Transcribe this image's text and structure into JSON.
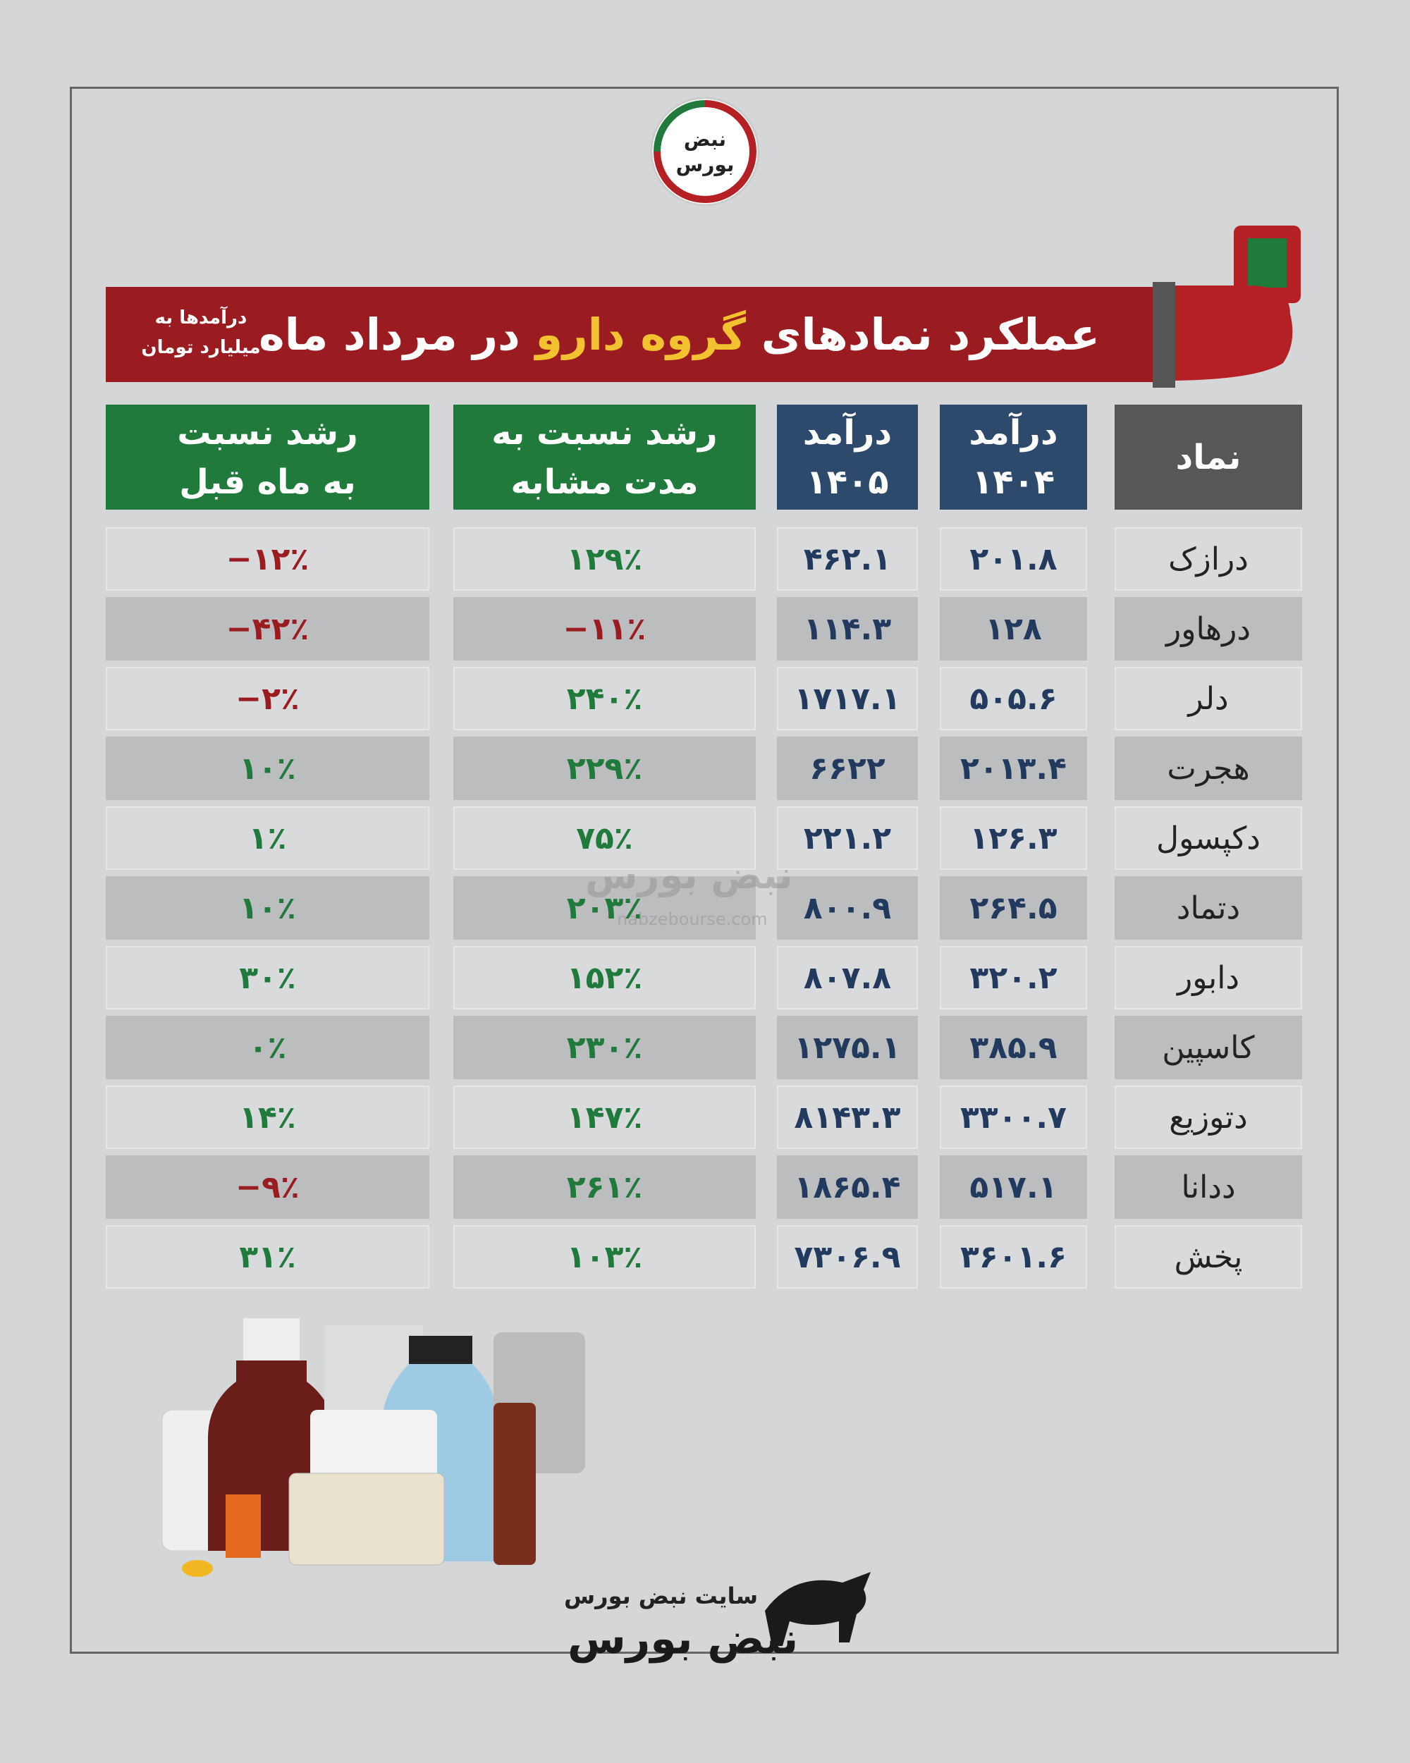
{
  "header": {
    "title_start": "عملکرد نمادهای",
    "title_highlight": "گروه دارو",
    "title_end": "در مرداد ماه",
    "note": [
      "درآمدها به",
      "میلیارد تومان"
    ],
    "logo": [
      "نبض",
      "بورس"
    ]
  },
  "table": {
    "columns": [
      [
        "نماد"
      ],
      [
        "درآمد",
        "۱۴۰۴"
      ],
      [
        "درآمد",
        "۱۴۰۵"
      ],
      [
        "رشد نسبت به",
        "مدت مشابه"
      ],
      [
        "رشد نسبت",
        "به ماه قبل"
      ]
    ],
    "rows": [
      [
        "درازک",
        "۲۰۱.۸",
        "۴۶۲.۱",
        "۱۲۹٪",
        "−۱۲٪"
      ],
      [
        "درهاور",
        "۱۲۸",
        "۱۱۴.۳",
        "−۱۱٪",
        "−۴۲٪"
      ],
      [
        "دلر",
        "۵۰۵.۶",
        "۱۷۱۷.۱",
        "۲۴۰٪",
        "−۲٪"
      ],
      [
        "هجرت",
        "۲۰۱۳.۴",
        "۶۶۲۲",
        "۲۲۹٪",
        "۱۰٪"
      ],
      [
        "دکپسول",
        "۱۲۶.۳",
        "۲۲۱.۲",
        "۷۵٪",
        "۱٪"
      ],
      [
        "دتماد",
        "۲۶۴.۵",
        "۸۰۰.۹",
        "۲۰۳٪",
        "۱۰٪"
      ],
      [
        "دابور",
        "۳۲۰.۲",
        "۸۰۷.۸",
        "۱۵۲٪",
        "۳۰٪"
      ],
      [
        "کاسپین",
        "۳۸۵.۹",
        "۱۲۷۵.۱",
        "۲۳۰٪",
        "۰٪"
      ],
      [
        "دتوزیع",
        "۳۳۰۰.۷",
        "۸۱۴۳.۳",
        "۱۴۷٪",
        "۱۴٪"
      ],
      [
        "ددانا",
        "۵۱۷.۱",
        "۱۸۶۵.۴",
        "۲۶۱٪",
        "−۹٪"
      ],
      [
        "پخش",
        "۳۶۰۱.۶",
        "۷۳۰۶.۹",
        "۱۰۳٪",
        "۳۱٪"
      ]
    ],
    "colors": {
      "positive": "#1f7a3c",
      "negative": "#9b1c20"
    }
  },
  "watermark": {
    "text": "نبض بورس",
    "url": "nabzebourse.com"
  },
  "footer": {
    "site": "سایت نبض بورس",
    "brand": "نبض بورس"
  }
}
